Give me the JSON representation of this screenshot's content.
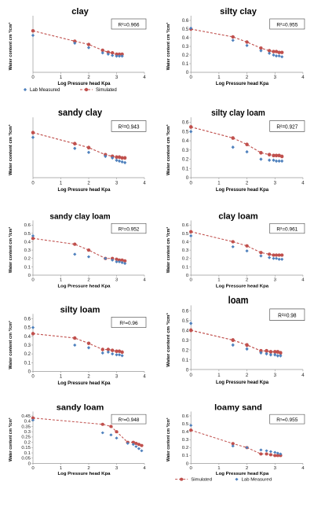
{
  "figure_panels": [
    {
      "title": "clay",
      "r2": "R²=0.966"
    },
    {
      "title": "silty clay",
      "r2": "R²=0.955"
    },
    {
      "title": "sandy clay",
      "r2": "R²=0.943"
    },
    {
      "title": "silty clay loam",
      "r2": "R²=0.927"
    },
    {
      "title": "sandy clay loam",
      "r2": "R²=0.952"
    },
    {
      "title": "clay loam",
      "r2": "R²=0.961"
    },
    {
      "title": "silty loam",
      "r2": "R²=0.96"
    },
    {
      "title": "loam",
      "r2": "R²=0.98"
    },
    {
      "title": "sandy loam",
      "r2": "R²=0.948"
    },
    {
      "title": "loamy sand",
      "r2": "R²=0.955"
    }
  ],
  "legends": {
    "lab_measured": "Lab Measured",
    "simulated": "Simulated"
  },
  "colors": {
    "lab_measured": "#4f81bd",
    "simulated": "#c0504d"
  },
  "chart_data": [
    {
      "type": "scatter",
      "title": "clay",
      "annotation": "R²=0.966",
      "xlabel": "Log Pressure head  Kpa",
      "ylabel": "Water content cm ³/cm³",
      "xlim": [
        0,
        4
      ],
      "xticks": [
        0,
        1,
        2,
        3,
        4
      ],
      "ylim": [
        0,
        0.8
      ],
      "yticks": [],
      "legend": "bottom",
      "series": [
        {
          "name": "Lab Measured",
          "marker": "diamond",
          "x": [
            0,
            1.5,
            2.0,
            2.5,
            2.7,
            2.85,
            3.0,
            3.1,
            3.2
          ],
          "y": [
            0.57,
            0.45,
            0.38,
            0.3,
            0.28,
            0.26,
            0.25,
            0.25,
            0.25
          ]
        },
        {
          "name": "Simulated",
          "marker": "circle-dashed-line",
          "x": [
            0,
            1.5,
            2.0,
            2.5,
            2.7,
            2.85,
            3.0,
            3.1,
            3.2
          ],
          "y": [
            0.64,
            0.48,
            0.43,
            0.34,
            0.31,
            0.3,
            0.28,
            0.28,
            0.28
          ]
        }
      ]
    },
    {
      "type": "scatter",
      "title": "silty clay",
      "annotation": "R²=0.955",
      "xlabel": "Log Pressure head  Kpa",
      "ylabel": "Water content cm ³/cm³",
      "xlim": [
        0,
        4
      ],
      "xticks": [
        0,
        1,
        2,
        3,
        4
      ],
      "ylim": [
        0,
        0.6
      ],
      "yticks": [
        0,
        0.1,
        0.2,
        0.3,
        0.4,
        0.5,
        0.6
      ],
      "series": [
        {
          "name": "Lab Measured",
          "marker": "diamond",
          "x": [
            0,
            1.5,
            2.0,
            2.5,
            2.8,
            2.95,
            3.05,
            3.15,
            3.25
          ],
          "y": [
            0.51,
            0.37,
            0.31,
            0.25,
            0.22,
            0.2,
            0.19,
            0.19,
            0.18
          ]
        },
        {
          "name": "Simulated",
          "marker": "circle-dashed-line",
          "x": [
            0,
            1.5,
            2.0,
            2.5,
            2.8,
            2.95,
            3.05,
            3.15,
            3.25
          ],
          "y": [
            0.5,
            0.41,
            0.35,
            0.28,
            0.25,
            0.24,
            0.24,
            0.23,
            0.23
          ]
        }
      ]
    },
    {
      "type": "scatter",
      "title": "sandy clay",
      "annotation": "R²=0.943",
      "xlabel": "Log Pressure head  Kpa",
      "ylabel": "Water content cm ³/cm³",
      "xlim": [
        0,
        4
      ],
      "xticks": [
        0,
        1,
        2,
        3,
        4
      ],
      "ylim": [
        0,
        0.7
      ],
      "yticks": [],
      "series": [
        {
          "name": "Lab Measured",
          "marker": "diamond",
          "x": [
            0,
            1.5,
            2.0,
            2.6,
            2.85,
            3.0,
            3.1,
            3.2,
            3.3
          ],
          "y": [
            0.51,
            0.37,
            0.32,
            0.27,
            0.25,
            0.22,
            0.21,
            0.2,
            0.19
          ]
        },
        {
          "name": "Simulated",
          "marker": "circle-dashed-line",
          "x": [
            0,
            1.5,
            2.0,
            2.6,
            2.85,
            3.0,
            3.1,
            3.2,
            3.3
          ],
          "y": [
            0.57,
            0.43,
            0.38,
            0.29,
            0.27,
            0.26,
            0.26,
            0.25,
            0.25
          ]
        }
      ]
    },
    {
      "type": "scatter",
      "title": "silty clay loam",
      "annotation": "R²=0.927",
      "xlabel": "Log Pressure head  Kpa",
      "ylabel": "Water content cm ³/cm³",
      "xlim": [
        0,
        4
      ],
      "xticks": [
        0,
        1,
        2,
        3,
        4
      ],
      "ylim": [
        0,
        0.6
      ],
      "yticks": [
        0,
        0.1,
        0.2,
        0.3,
        0.4,
        0.5,
        0.6
      ],
      "series": [
        {
          "name": "Lab Measured",
          "marker": "diamond",
          "x": [
            0,
            1.5,
            2.0,
            2.5,
            2.8,
            2.95,
            3.05,
            3.15,
            3.25
          ],
          "y": [
            0.5,
            0.33,
            0.28,
            0.2,
            0.19,
            0.19,
            0.18,
            0.18,
            0.18
          ]
        },
        {
          "name": "Simulated",
          "marker": "circle-dashed-line",
          "x": [
            0,
            1.5,
            2.0,
            2.5,
            2.8,
            2.95,
            3.05,
            3.15,
            3.25
          ],
          "y": [
            0.55,
            0.43,
            0.36,
            0.27,
            0.25,
            0.24,
            0.24,
            0.24,
            0.23
          ]
        }
      ]
    },
    {
      "type": "scatter",
      "title": "sandy clay loam",
      "annotation": "R²=0.952",
      "xlabel": "Log Pressure head  Kpa",
      "ylabel": "Water content cm ³/cm³",
      "xlim": [
        0,
        4
      ],
      "xticks": [
        0,
        1,
        2,
        3,
        4
      ],
      "ylim": [
        0,
        0.6
      ],
      "yticks": [
        0,
        0.1,
        0.2,
        0.3,
        0.4,
        0.5,
        0.6
      ],
      "series": [
        {
          "name": "Lab Measured",
          "marker": "diamond",
          "x": [
            0,
            1.5,
            2.0,
            2.6,
            2.85,
            3.0,
            3.1,
            3.2,
            3.3
          ],
          "y": [
            0.47,
            0.25,
            0.22,
            0.2,
            0.18,
            0.16,
            0.16,
            0.15,
            0.14
          ]
        },
        {
          "name": "Simulated",
          "marker": "circle-dashed-line",
          "x": [
            0,
            1.5,
            2.0,
            2.6,
            2.85,
            3.0,
            3.1,
            3.2,
            3.3
          ],
          "y": [
            0.44,
            0.37,
            0.3,
            0.2,
            0.2,
            0.19,
            0.18,
            0.18,
            0.17
          ]
        }
      ]
    },
    {
      "type": "scatter",
      "title": "clay loam",
      "annotation": "R²=0.961",
      "xlabel": "Log Pressure head  Kpa",
      "ylabel": "Water content cm ³/cm³",
      "xlim": [
        0,
        4
      ],
      "xticks": [
        0,
        1,
        2,
        3,
        4
      ],
      "ylim": [
        0,
        0.6
      ],
      "yticks": [
        0,
        0.1,
        0.2,
        0.3,
        0.4,
        0.5,
        0.6
      ],
      "series": [
        {
          "name": "Lab Measured",
          "marker": "diamond",
          "x": [
            0,
            1.5,
            2.0,
            2.5,
            2.8,
            2.95,
            3.05,
            3.15,
            3.25
          ],
          "y": [
            0.47,
            0.34,
            0.29,
            0.23,
            0.21,
            0.2,
            0.2,
            0.19,
            0.19
          ]
        },
        {
          "name": "Simulated",
          "marker": "circle-dashed-line",
          "x": [
            0,
            1.5,
            2.0,
            2.5,
            2.8,
            2.95,
            3.05,
            3.15,
            3.25
          ],
          "y": [
            0.52,
            0.4,
            0.35,
            0.27,
            0.25,
            0.24,
            0.24,
            0.24,
            0.24
          ]
        }
      ]
    },
    {
      "type": "scatter",
      "title": "silty loam",
      "annotation": "R²=0.96",
      "xlabel": "Log Pressure head  Kpa",
      "ylabel": "Water content cm ³/cm³",
      "xlim": [
        0,
        4
      ],
      "xticks": [
        0,
        1,
        2,
        3,
        4
      ],
      "ylim": [
        0,
        0.6
      ],
      "yticks": [
        0,
        0.1,
        0.2,
        0.3,
        0.4,
        0.5,
        0.6
      ],
      "series": [
        {
          "name": "Lab Measured",
          "marker": "diamond",
          "x": [
            0,
            1.5,
            2.0,
            2.5,
            2.7,
            2.85,
            3.0,
            3.1,
            3.2
          ],
          "y": [
            0.5,
            0.3,
            0.27,
            0.21,
            0.22,
            0.2,
            0.19,
            0.19,
            0.18
          ]
        },
        {
          "name": "Simulated",
          "marker": "circle-dashed-line",
          "x": [
            0,
            1.5,
            2.0,
            2.5,
            2.7,
            2.85,
            3.0,
            3.1,
            3.2
          ],
          "y": [
            0.43,
            0.38,
            0.32,
            0.25,
            0.25,
            0.24,
            0.23,
            0.23,
            0.22
          ]
        }
      ]
    },
    {
      "type": "scatter",
      "title": "loam",
      "annotation": "R²=0.98",
      "xlabel": "Log Pressure head  Kpa",
      "ylabel": "Water content cm ³/cm³",
      "xlim": [
        0,
        4
      ],
      "xticks": [
        0,
        1,
        2,
        3,
        4
      ],
      "ylim": [
        0,
        0.6
      ],
      "yticks": [
        0,
        0.1,
        0.2,
        0.3,
        0.4,
        0.5,
        0.6
      ],
      "series": [
        {
          "name": "Lab Measured",
          "marker": "diamond",
          "x": [
            0,
            1.5,
            2.0,
            2.5,
            2.7,
            2.85,
            3.0,
            3.1,
            3.2
          ],
          "y": [
            0.47,
            0.25,
            0.21,
            0.17,
            0.16,
            0.15,
            0.15,
            0.14,
            0.14
          ]
        },
        {
          "name": "Simulated",
          "marker": "circle-dashed-line",
          "x": [
            0,
            1.5,
            2.0,
            2.5,
            2.7,
            2.85,
            3.0,
            3.1,
            3.2
          ],
          "y": [
            0.4,
            0.3,
            0.25,
            0.19,
            0.19,
            0.18,
            0.18,
            0.18,
            0.17
          ]
        }
      ]
    },
    {
      "type": "scatter",
      "title": "sandy loam",
      "annotation": "R²=0.948",
      "xlabel": "Log Pressure head  Kpa",
      "ylabel": "Water content cm ³/cm³",
      "xlim": [
        0,
        4
      ],
      "xticks": [
        0,
        1,
        2,
        3,
        4
      ],
      "ylim": [
        0,
        0.45
      ],
      "yticks": [
        0,
        0.05,
        0.1,
        0.15,
        0.2,
        0.25,
        0.3,
        0.35,
        0.4,
        0.45
      ],
      "series": [
        {
          "name": "Lab Measured",
          "marker": "diamond",
          "x": [
            0,
            2.5,
            2.8,
            3.0,
            3.4,
            3.6,
            3.7,
            3.8,
            3.9
          ],
          "y": [
            0.41,
            0.29,
            0.27,
            0.24,
            0.19,
            0.18,
            0.16,
            0.14,
            0.12
          ]
        },
        {
          "name": "Simulated",
          "marker": "circle-dashed-line",
          "x": [
            0,
            2.5,
            2.8,
            3.0,
            3.4,
            3.6,
            3.7,
            3.8,
            3.9
          ],
          "y": [
            0.43,
            0.37,
            0.35,
            0.3,
            0.2,
            0.2,
            0.19,
            0.18,
            0.17
          ]
        }
      ]
    },
    {
      "type": "scatter",
      "title": "loamy sand",
      "annotation": "R²=0.955",
      "xlabel": "Log Pressure head  Kpa",
      "ylabel": "Water content cm ³/cm³",
      "xlim": [
        0,
        4
      ],
      "xticks": [
        0,
        1,
        2,
        3,
        4
      ],
      "ylim": [
        0,
        0.6
      ],
      "yticks": [
        0,
        0.1,
        0.2,
        0.3,
        0.4,
        0.5,
        0.6
      ],
      "legend": "bottom",
      "series": [
        {
          "name": "Lab Measured",
          "marker": "diamond",
          "x": [
            0,
            1.5,
            2.0,
            2.5,
            2.7,
            2.85,
            3.0,
            3.1,
            3.2
          ],
          "y": [
            0.48,
            0.22,
            0.2,
            0.17,
            0.16,
            0.15,
            0.14,
            0.13,
            0.12
          ]
        },
        {
          "name": "Simulated",
          "marker": "circle-dashed-line",
          "x": [
            0,
            1.5,
            2.0,
            2.5,
            2.7,
            2.85,
            3.0,
            3.1,
            3.2
          ],
          "y": [
            0.42,
            0.25,
            0.2,
            0.12,
            0.12,
            0.11,
            0.1,
            0.1,
            0.1
          ]
        }
      ]
    }
  ]
}
